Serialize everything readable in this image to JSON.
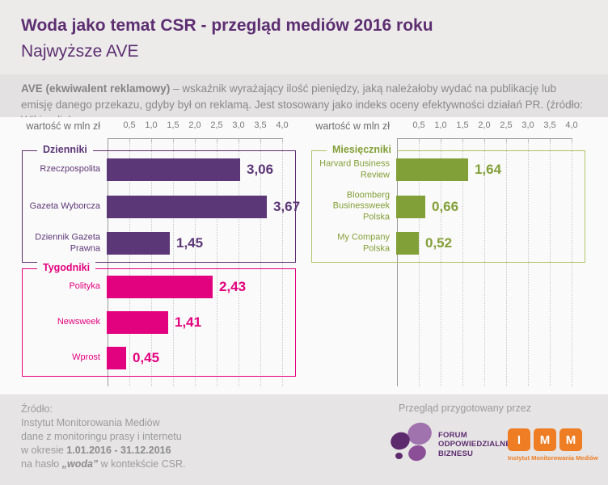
{
  "header": {
    "title": "Woda jako temat CSR - przegląd mediów 2016 roku",
    "subtitle": "Najwyższe AVE"
  },
  "description": {
    "lead": "AVE (ekwiwalent reklamowy)",
    "text": " – wskaźnik wyrażający ilość pieniędzy, jaką należałoby wydać na publikację lub emisję danego przekazu, gdyby był on reklamą. Jest stosowany jako indeks oceny efektywności działań PR. (źródło: Wikipedia)"
  },
  "chart_data": {
    "type": "bar",
    "orientation": "horizontal",
    "unit_label": "wartość w mln zł",
    "xlim": [
      0,
      4.0
    ],
    "tick_step": 0.5,
    "tick_labels": [
      "0,5",
      "1,0",
      "1,5",
      "2,0",
      "2,5",
      "3,0",
      "3,5",
      "4,0"
    ],
    "grid": "dotted-vertical",
    "panels": [
      {
        "side": "left",
        "groups": [
          {
            "name": "Dzienniki",
            "color": "#5C3777",
            "border_color": "#5D2E71",
            "rows": [
              {
                "label": "Rzeczpospolita",
                "value": 3.06,
                "value_label": "3,06"
              },
              {
                "label": "Gazeta Wyborcza",
                "value": 3.67,
                "value_label": "3,67"
              },
              {
                "label": "Dziennik Gazeta Prawna",
                "value": 1.45,
                "value_label": "1,45"
              }
            ]
          },
          {
            "name": "Tygodniki",
            "color": "#E2017E",
            "border_color": "#E2017E",
            "rows": [
              {
                "label": "Polityka",
                "value": 2.43,
                "value_label": "2,43"
              },
              {
                "label": "Newsweek",
                "value": 1.41,
                "value_label": "1,41"
              },
              {
                "label": "Wprost",
                "value": 0.45,
                "value_label": "0,45"
              }
            ]
          }
        ]
      },
      {
        "side": "right",
        "groups": [
          {
            "name": "Miesięczniki",
            "color": "#82A038",
            "border_color": "#AFC368",
            "rows": [
              {
                "label": "Harvard Business Review",
                "value": 1.64,
                "value_label": "1,64"
              },
              {
                "label": "Bloomberg Businessweek Polska",
                "value": 0.66,
                "value_label": "0,66"
              },
              {
                "label": "My Company Polska",
                "value": 0.52,
                "value_label": "0,52"
              }
            ]
          }
        ]
      }
    ]
  },
  "footer": {
    "source": {
      "line1": "Źródło:",
      "line2": "Instytut Monitorowania Mediów",
      "line3": "dane z monitoringu prasy i internetu",
      "line4_prefix": "w okresie ",
      "line4_bold": "1.01.2016 - 31.12.2016",
      "line5_prefix": "na hasło ",
      "line5_bold": "„woda”",
      "line5_suffix": " w kontekście CSR."
    },
    "prepared_by": "Przegląd przygotowany przez",
    "fob_logo": {
      "lines": [
        "FORUM",
        "ODPOWIEDZIALNEGO",
        "BIZNESU"
      ],
      "color": "#5D2E71"
    },
    "imm_logo": {
      "letters": [
        "I",
        "M",
        "M"
      ],
      "caption": "Instytut Monitorowania Mediów",
      "color": "#EE7D23"
    }
  }
}
